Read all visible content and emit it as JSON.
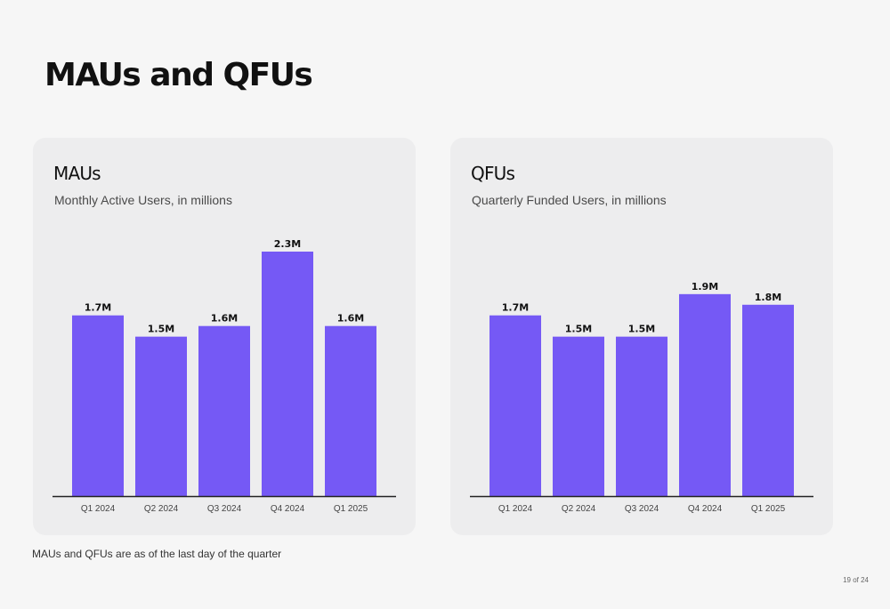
{
  "page": {
    "title": "MAUs and QFUs",
    "footnote": "MAUs and QFUs are as of the last day of the quarter",
    "page_number": "19 of 24"
  },
  "colors": {
    "bar": "#7559f5",
    "axis": "#222222",
    "card_background": "#ededee",
    "page_background": "#f6f6f6"
  },
  "chart_data": [
    {
      "type": "bar",
      "title": "MAUs",
      "subtitle": "Monthly Active Users, in millions",
      "categories": [
        "Q1 2024",
        "Q2 2024",
        "Q3 2024",
        "Q4 2024",
        "Q1 2025"
      ],
      "values": [
        1.7,
        1.5,
        1.6,
        2.3,
        1.6
      ],
      "data_labels": [
        "1.7M",
        "1.5M",
        "1.6M",
        "2.3M",
        "1.6M"
      ],
      "xlabel": "",
      "ylabel": "",
      "ylim": [
        0,
        2.3
      ],
      "grid": false,
      "legend": "none"
    },
    {
      "type": "bar",
      "title": "QFUs",
      "subtitle": "Quarterly Funded Users, in millions",
      "categories": [
        "Q1 2024",
        "Q2 2024",
        "Q3 2024",
        "Q4 2024",
        "Q1 2025"
      ],
      "values": [
        1.7,
        1.5,
        1.5,
        1.9,
        1.8
      ],
      "data_labels": [
        "1.7M",
        "1.5M",
        "1.5M",
        "1.9M",
        "1.8M"
      ],
      "xlabel": "",
      "ylabel": "",
      "ylim": [
        0,
        2.3
      ],
      "grid": false,
      "legend": "none"
    }
  ]
}
